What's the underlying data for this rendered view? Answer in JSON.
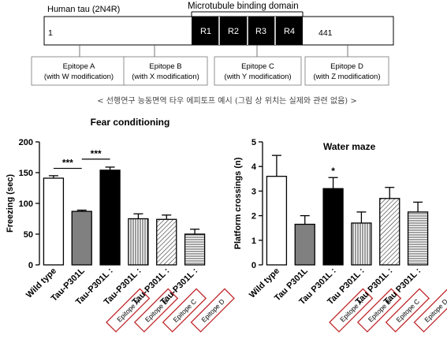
{
  "diagram": {
    "protein_label": "Human tau (2N4R)",
    "domain_label": "Microtubule binding domain",
    "start_label": "1",
    "end_label": "441",
    "repeats": [
      "R1",
      "R2",
      "R3",
      "R4"
    ],
    "epitopes": [
      {
        "name": "Epitope A",
        "mod": "(with W modification)"
      },
      {
        "name": "Epitope B",
        "mod": "(with X modification)"
      },
      {
        "name": "Epitope C",
        "mod": "(with Y modification)"
      },
      {
        "name": "Epitope D",
        "mod": "(with Z modification)"
      }
    ],
    "caption": "< 선행연구 능동면역 타우 에피토프 예시 (그림 상 위치는 실제와 관련 없음) >"
  },
  "chart_data": [
    {
      "type": "bar",
      "title": "Fear conditioning",
      "ylabel": "Freezing (sec)",
      "ylim": [
        0,
        200
      ],
      "yticks": [
        "0",
        "50",
        "100",
        "150",
        "200"
      ],
      "significance": [
        "***",
        "***"
      ],
      "categories": [
        "Wild type",
        "Tau-P301L",
        "Tau-P301L",
        "Tau-P301L",
        "Tau-P301L",
        "Tau-P301L"
      ],
      "category_tags": [
        "",
        "",
        "Epitope A",
        "Epitope B",
        "Epitope C",
        "Epitope D"
      ],
      "values": [
        141,
        87,
        154,
        75,
        74,
        50
      ],
      "errors": [
        4,
        2,
        5,
        8,
        7,
        8
      ],
      "fills": [
        "white",
        "gray",
        "black",
        "vlines",
        "diag",
        "hlines"
      ]
    },
    {
      "type": "bar",
      "title": "Water maze",
      "ylabel": "Platform crossings (n)",
      "ylim": [
        0,
        5
      ],
      "yticks": [
        "0",
        "1",
        "2",
        "3",
        "4",
        "5"
      ],
      "significance": [
        "*"
      ],
      "categories": [
        "Wild type",
        "Tau P301L",
        "Tau P301L",
        "Tau P301L",
        "Tau P301L",
        "Tau P301L"
      ],
      "category_tags": [
        "",
        "",
        "Epitope A",
        "Epitope B",
        "Epitope C",
        "Epitope D"
      ],
      "values": [
        3.6,
        1.65,
        3.1,
        1.7,
        2.7,
        2.15
      ],
      "errors": [
        0.85,
        0.35,
        0.45,
        0.45,
        0.45,
        0.4
      ],
      "fills": [
        "white",
        "gray",
        "black",
        "vlines",
        "diag",
        "hlines"
      ]
    }
  ]
}
